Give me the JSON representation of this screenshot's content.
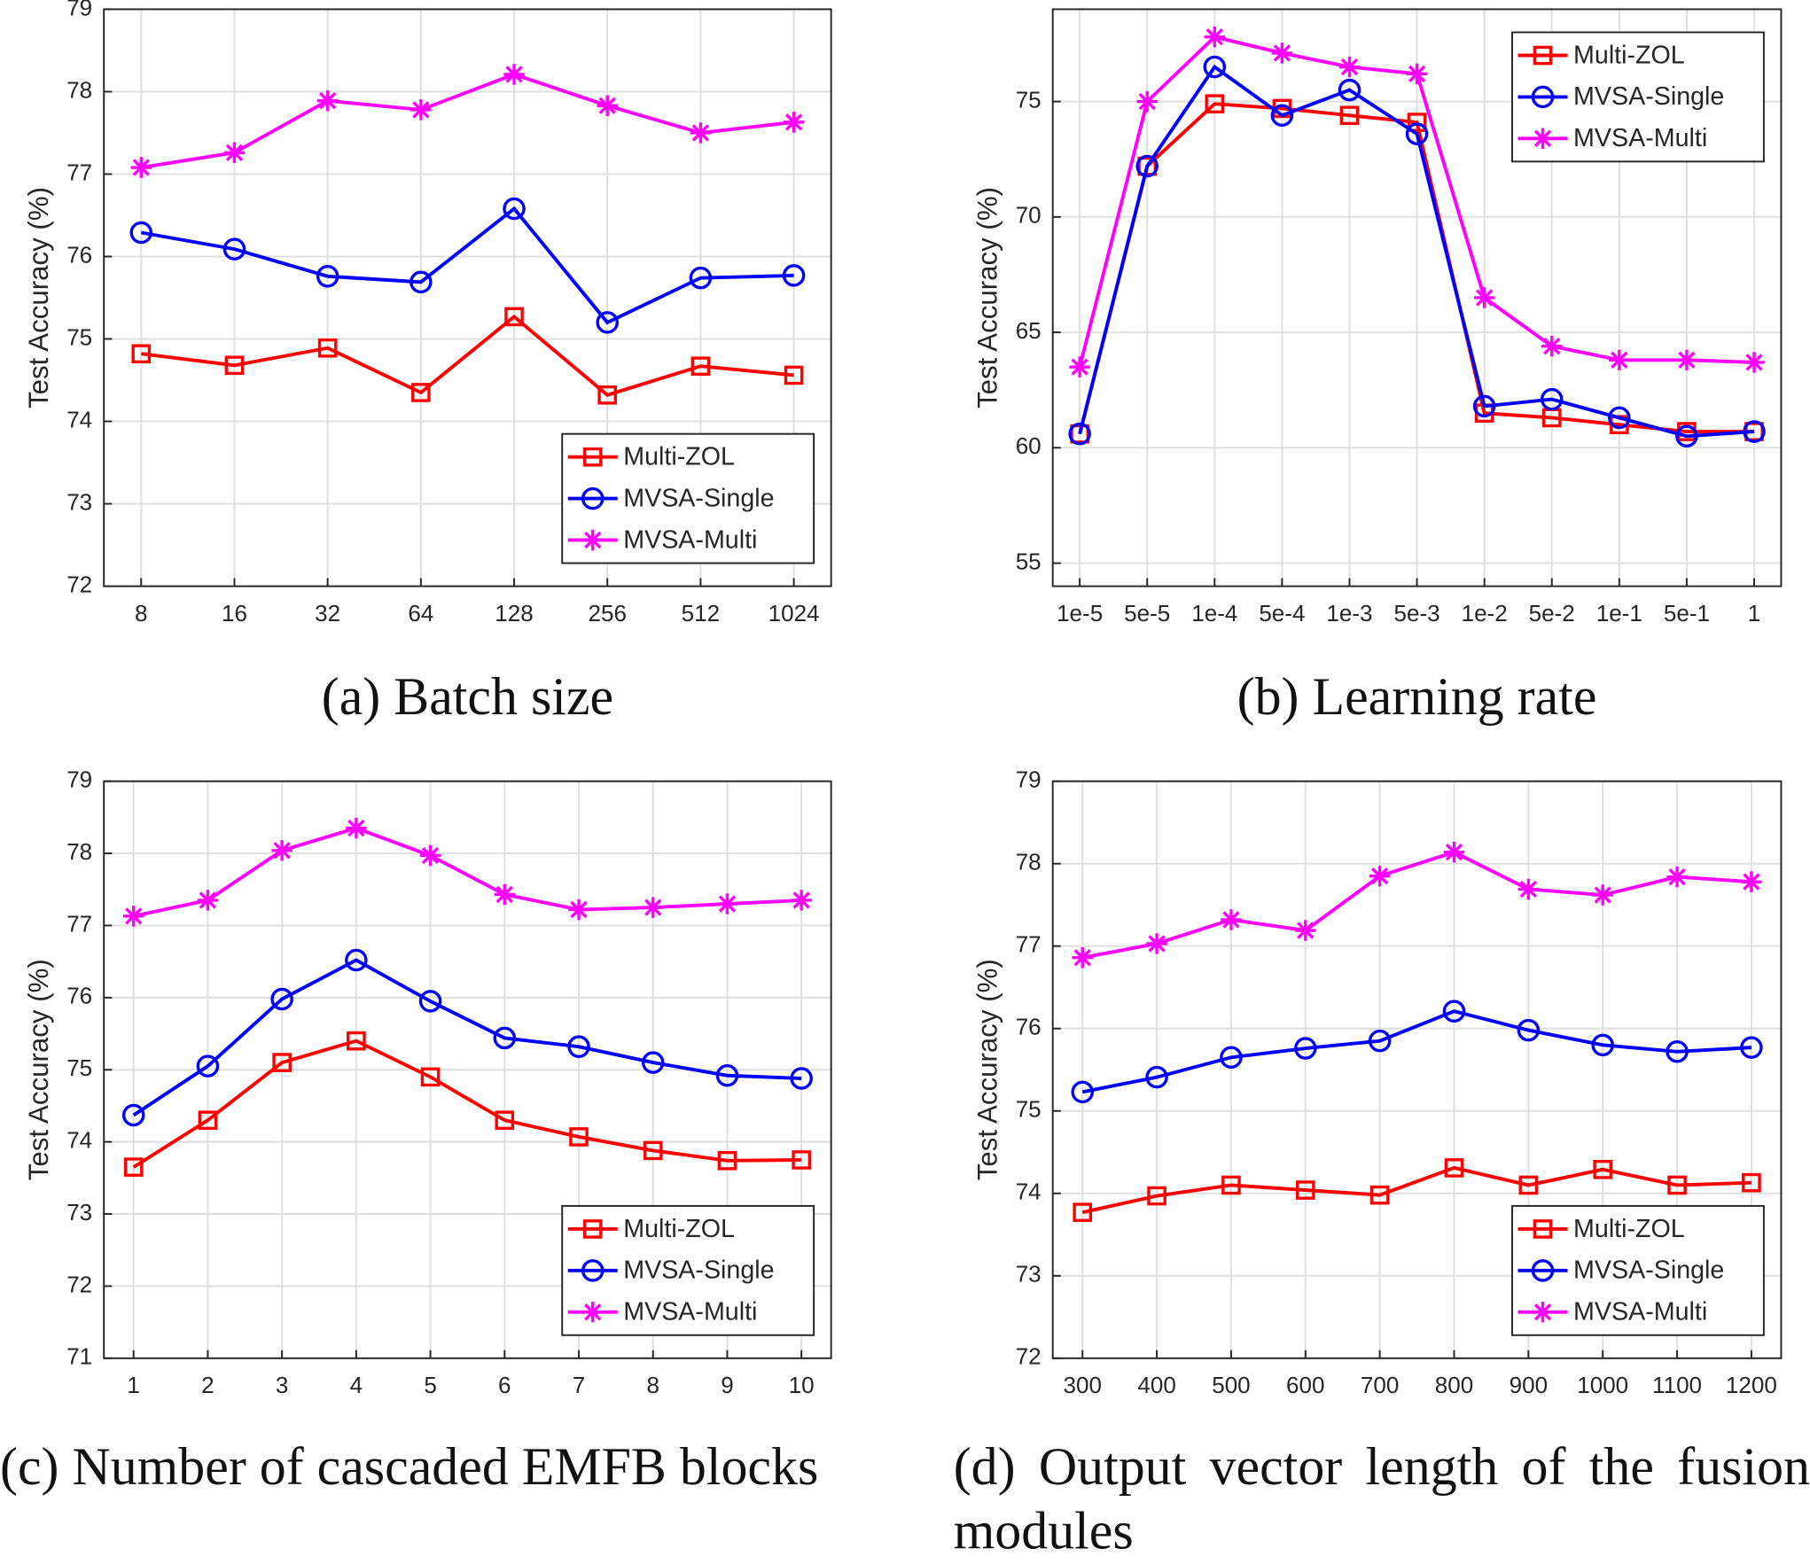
{
  "chart_data": [
    {
      "type": "line",
      "caption": "(a) Batch size",
      "y_label": "Test Accuracy (%)",
      "categories": [
        "8",
        "16",
        "32",
        "64",
        "128",
        "256",
        "512",
        "1024"
      ],
      "ylim": [
        72,
        79
      ],
      "yticks": [
        72,
        73,
        74,
        75,
        76,
        77,
        78,
        79
      ],
      "grid": true,
      "legend": "lower right",
      "series": [
        {
          "name": "Multi-ZOL",
          "color": "#ff0000",
          "marker": "square",
          "values": [
            74.82,
            74.68,
            74.89,
            74.35,
            75.27,
            74.32,
            74.67,
            74.56
          ]
        },
        {
          "name": "MVSA-Single",
          "color": "#0000ff",
          "marker": "circle",
          "values": [
            76.29,
            76.09,
            75.76,
            75.69,
            76.58,
            75.2,
            75.74,
            75.77
          ]
        },
        {
          "name": "MVSA-Multi",
          "color": "#ff00ff",
          "marker": "asterisk",
          "values": [
            77.08,
            77.26,
            77.89,
            77.78,
            78.21,
            77.83,
            77.5,
            77.63
          ]
        }
      ]
    },
    {
      "type": "line",
      "caption": "(b) Learning rate",
      "y_label": "Test Accuracy (%)",
      "categories": [
        "1e-5",
        "5e-5",
        "1e-4",
        "5e-4",
        "1e-3",
        "5e-3",
        "1e-2",
        "5e-2",
        "1e-1",
        "5e-1",
        "1"
      ],
      "ylim": [
        54,
        79
      ],
      "yticks": [
        55,
        60,
        65,
        70,
        75
      ],
      "grid": true,
      "legend": "upper right",
      "series": [
        {
          "name": "Multi-ZOL",
          "color": "#ff0000",
          "marker": "square",
          "values": [
            60.6,
            72.2,
            74.9,
            74.7,
            74.4,
            74.1,
            61.5,
            61.3,
            61.0,
            60.7,
            60.7
          ]
        },
        {
          "name": "MVSA-Single",
          "color": "#0000ff",
          "marker": "circle",
          "values": [
            60.6,
            72.2,
            76.5,
            74.4,
            75.5,
            73.6,
            61.8,
            62.1,
            61.3,
            60.5,
            60.7
          ]
        },
        {
          "name": "MVSA-Multi",
          "color": "#ff00ff",
          "marker": "asterisk",
          "values": [
            63.5,
            75.0,
            77.8,
            77.1,
            76.5,
            76.2,
            66.5,
            64.4,
            63.8,
            63.8,
            63.7
          ]
        }
      ]
    },
    {
      "type": "line",
      "caption": "(c) Number of cascaded EMFB blocks",
      "y_label": "Test Accuracy (%)",
      "categories": [
        "1",
        "2",
        "3",
        "4",
        "5",
        "6",
        "7",
        "8",
        "9",
        "10"
      ],
      "ylim": [
        71,
        79
      ],
      "yticks": [
        71,
        72,
        73,
        74,
        75,
        76,
        77,
        78,
        79
      ],
      "grid": true,
      "legend": "lower right",
      "series": [
        {
          "name": "Multi-ZOL",
          "color": "#ff0000",
          "marker": "square",
          "values": [
            73.65,
            74.3,
            75.1,
            75.4,
            74.9,
            74.3,
            74.07,
            73.88,
            73.74,
            73.75
          ]
        },
        {
          "name": "MVSA-Single",
          "color": "#0000ff",
          "marker": "circle",
          "values": [
            74.37,
            75.05,
            75.98,
            76.52,
            75.95,
            75.44,
            75.32,
            75.1,
            74.92,
            74.88
          ]
        },
        {
          "name": "MVSA-Multi",
          "color": "#ff00ff",
          "marker": "asterisk",
          "values": [
            77.13,
            77.35,
            78.04,
            78.35,
            77.97,
            77.43,
            77.22,
            77.25,
            77.3,
            77.35
          ]
        }
      ]
    },
    {
      "type": "line",
      "caption": "(d) Output vector length of the fusion modules",
      "y_label": "Test Accuracy (%)",
      "categories": [
        "300",
        "400",
        "500",
        "600",
        "700",
        "800",
        "900",
        "1000",
        "1100",
        "1200"
      ],
      "ylim": [
        72,
        79
      ],
      "yticks": [
        72,
        73,
        74,
        75,
        76,
        77,
        78,
        79
      ],
      "grid": true,
      "legend": "lower right",
      "series": [
        {
          "name": "Multi-ZOL",
          "color": "#ff0000",
          "marker": "square",
          "values": [
            73.77,
            73.97,
            74.1,
            74.04,
            73.98,
            74.31,
            74.1,
            74.29,
            74.1,
            74.13
          ]
        },
        {
          "name": "MVSA-Single",
          "color": "#0000ff",
          "marker": "circle",
          "values": [
            75.23,
            75.41,
            75.65,
            75.76,
            75.85,
            76.21,
            75.98,
            75.8,
            75.72,
            75.77
          ]
        },
        {
          "name": "MVSA-Multi",
          "color": "#ff00ff",
          "marker": "asterisk",
          "values": [
            76.86,
            77.03,
            77.32,
            77.19,
            77.85,
            78.14,
            77.69,
            77.62,
            77.84,
            77.78
          ]
        }
      ]
    }
  ]
}
